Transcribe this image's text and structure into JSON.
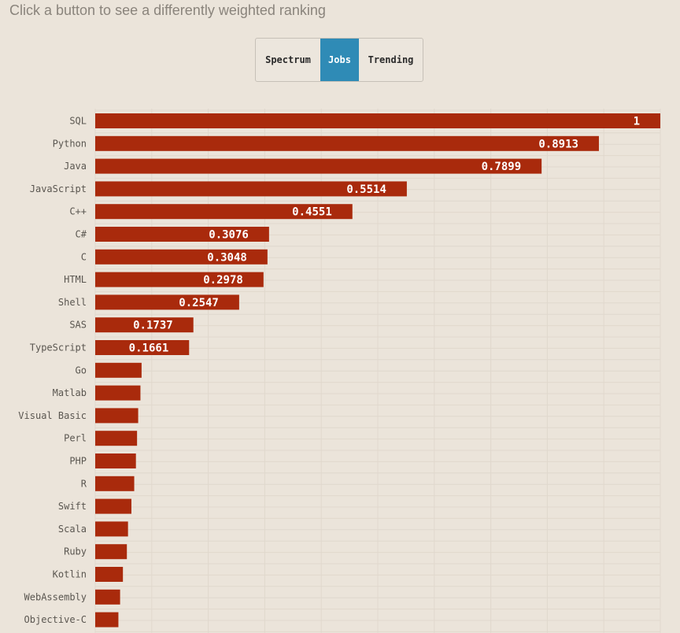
{
  "subtitle": "Click a button to see a differently weighted ranking",
  "buttons": [
    {
      "label": "Spectrum",
      "active": false
    },
    {
      "label": "Jobs",
      "active": true
    },
    {
      "label": "Trending",
      "active": false
    }
  ],
  "colors": {
    "background": "#ebe4da",
    "bar": "#a92a0c",
    "active_button": "#2f8bb6",
    "gridline": "#e0d8cd"
  },
  "chart_data": {
    "type": "bar",
    "orientation": "horizontal",
    "title": "",
    "xlim": [
      0,
      1
    ],
    "categories": [
      "SQL",
      "Python",
      "Java",
      "JavaScript",
      "C++",
      "C#",
      "C",
      "HTML",
      "Shell",
      "SAS",
      "TypeScript",
      "Go",
      "Matlab",
      "Visual Basic",
      "Perl",
      "PHP",
      "R",
      "Swift",
      "Scala",
      "Ruby",
      "Kotlin",
      "WebAssembly",
      "Objective-C"
    ],
    "values": [
      1,
      0.8913,
      0.7899,
      0.5514,
      0.4551,
      0.3076,
      0.3048,
      0.2978,
      0.2547,
      0.1737,
      0.1661,
      0.082,
      0.08,
      0.076,
      0.074,
      0.072,
      0.069,
      0.064,
      0.058,
      0.056,
      0.049,
      0.044,
      0.041
    ],
    "value_labels": [
      "1",
      "0.8913",
      "0.7899",
      "0.5514",
      "0.4551",
      "0.3076",
      "0.3048",
      "0.2978",
      "0.2547",
      "0.1737",
      "0.1661",
      "",
      "",
      "",
      "",
      "",
      "",
      "",
      "",
      "",
      "",
      "",
      ""
    ]
  }
}
